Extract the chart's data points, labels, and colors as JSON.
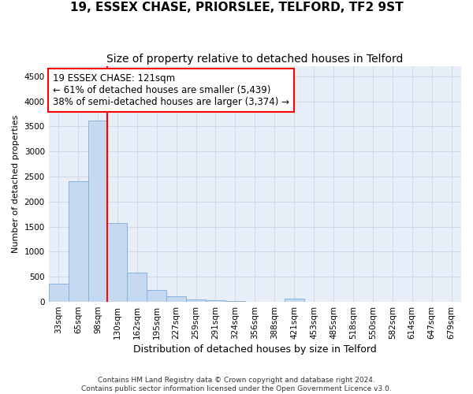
{
  "title": "19, ESSEX CHASE, PRIORSLEE, TELFORD, TF2 9ST",
  "subtitle": "Size of property relative to detached houses in Telford",
  "xlabel": "Distribution of detached houses by size in Telford",
  "ylabel": "Number of detached properties",
  "categories": [
    "33sqm",
    "65sqm",
    "98sqm",
    "130sqm",
    "162sqm",
    "195sqm",
    "227sqm",
    "259sqm",
    "291sqm",
    "324sqm",
    "356sqm",
    "388sqm",
    "421sqm",
    "453sqm",
    "485sqm",
    "518sqm",
    "550sqm",
    "582sqm",
    "614sqm",
    "647sqm",
    "679sqm"
  ],
  "values": [
    370,
    2400,
    3620,
    1580,
    590,
    230,
    105,
    55,
    30,
    10,
    0,
    0,
    60,
    0,
    0,
    0,
    0,
    0,
    0,
    0,
    0
  ],
  "bar_color": "#c5d9f0",
  "bar_edge_color": "#7aacda",
  "vline_color": "red",
  "vline_bin": 2,
  "annotation_line1": "19 ESSEX CHASE: 121sqm",
  "annotation_line2": "← 61% of detached houses are smaller (5,439)",
  "annotation_line3": "38% of semi-detached houses are larger (3,374) →",
  "annotation_box_color": "white",
  "annotation_box_edgecolor": "red",
  "ylim": [
    0,
    4700
  ],
  "yticks": [
    0,
    500,
    1000,
    1500,
    2000,
    2500,
    3000,
    3500,
    4000,
    4500
  ],
  "grid_color": "#d0d8e8",
  "bg_color": "#e8eef8",
  "footer_line1": "Contains HM Land Registry data © Crown copyright and database right 2024.",
  "footer_line2": "Contains public sector information licensed under the Open Government Licence v3.0.",
  "title_fontsize": 11,
  "subtitle_fontsize": 10,
  "xlabel_fontsize": 9,
  "ylabel_fontsize": 8,
  "tick_fontsize": 7.5,
  "annotation_fontsize": 8.5,
  "footer_fontsize": 6.5
}
